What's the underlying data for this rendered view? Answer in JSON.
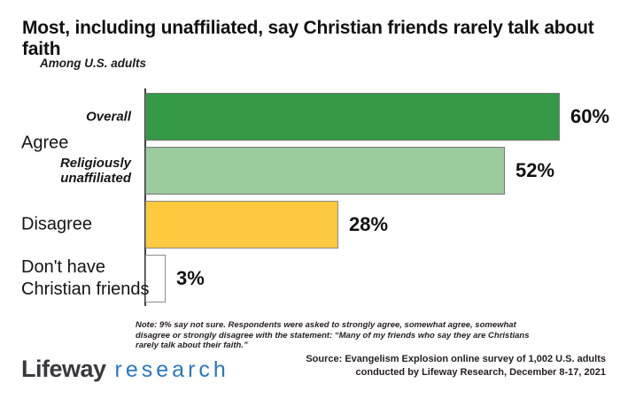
{
  "title": "Most, including unaffiliated, say Christian friends rarely talk about faith",
  "subtitle": "Among U.S. adults",
  "chart_data": {
    "type": "bar",
    "orientation": "horizontal",
    "title": "Most, including unaffiliated, say Christian friends rarely talk about faith",
    "xlim": [
      0,
      60
    ],
    "grid": false,
    "legend": "none",
    "categories": [
      "Overall",
      "Religiously unaffiliated",
      "Disagree",
      "Don't have Christian friends"
    ],
    "groups": [
      {
        "label": "Agree"
      },
      {
        "label": "Disagree"
      },
      {
        "label": "Don't have Christian friends"
      }
    ],
    "bars": [
      {
        "sublabel": "Overall",
        "value": 60,
        "value_label": "60%",
        "color": "#359946",
        "border": "#767676"
      },
      {
        "sublabel": "Religiously unaffiliated",
        "value": 52,
        "value_label": "52%",
        "color": "#9CCB9D",
        "border": "#767676"
      },
      {
        "sublabel": "",
        "value": 28,
        "value_label": "28%",
        "color": "#FDC93E",
        "border": "#8a8a8a"
      },
      {
        "sublabel": "",
        "value": 3,
        "value_label": "3%",
        "color": "#FFFFFF",
        "border": "#8c8c8c"
      }
    ],
    "axis_color": "#3d3d3d"
  },
  "note": "Note: 9% say not sure. Respondents were asked to strongly agree, somewhat agree, somewhat disagree or strongly disagree with the statement: “Many of my friends who say they are Christians rarely talk about their faith.”",
  "source": {
    "line1": "Source: Evangelism Explosion online survey of 1,002 U.S. adults",
    "line2": "conducted by Lifeway Research, December 8-17, 2021"
  },
  "logo": {
    "part1": "Lifeway",
    "part2": "research",
    "brand_dark": "#3a3a3c",
    "brand_blue": "#2878BE"
  }
}
